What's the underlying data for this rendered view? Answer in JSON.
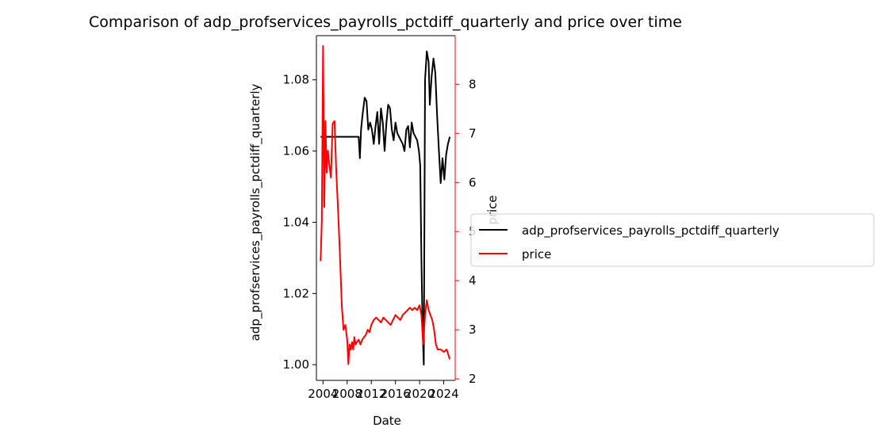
{
  "chart_data": {
    "type": "line",
    "title": "Comparison of adp_profservices_payrolls_pctdiff_quarterly and price over time",
    "xlabel": "Date",
    "ylabel_left": "adp_profservices_payrolls_pctdiff_quarterly",
    "ylabel_right": "price",
    "x_ticks": [
      "2004",
      "2008",
      "2012",
      "2016",
      "2020",
      "2024"
    ],
    "x_tick_values": [
      2004,
      2008,
      2012,
      2016,
      2020,
      2024
    ],
    "xlim": [
      2002.9,
      2025.9
    ],
    "y_left_ticks": [
      "1.00",
      "1.02",
      "1.04",
      "1.06",
      "1.08"
    ],
    "y_left_tick_values": [
      1.0,
      1.02,
      1.04,
      1.06,
      1.08
    ],
    "ylim_left": [
      0.9956,
      1.0924
    ],
    "y_right_ticks": [
      "2",
      "3",
      "4",
      "5",
      "6",
      "7",
      "8"
    ],
    "y_right_tick_values": [
      2,
      3,
      4,
      5,
      6,
      7,
      8
    ],
    "ylim_right": [
      1.97,
      8.99
    ],
    "grid": false,
    "legend_placement": "outside-right",
    "colors": {
      "left_axis": "#000000",
      "right_axis": "#ff0000"
    },
    "series": [
      {
        "name": "adp_profservices_payrolls_pctdiff_quarterly",
        "axis": "left",
        "color": "#000000",
        "x": [
          2003.6,
          2005.0,
          2007.0,
          2009.0,
          2009.9,
          2010.1,
          2010.3,
          2010.6,
          2010.9,
          2011.2,
          2011.5,
          2011.8,
          2012.1,
          2012.4,
          2012.7,
          2013.0,
          2013.3,
          2013.6,
          2013.9,
          2014.2,
          2014.5,
          2014.8,
          2015.1,
          2015.4,
          2015.7,
          2016.0,
          2016.3,
          2016.6,
          2016.9,
          2017.2,
          2017.5,
          2017.8,
          2018.1,
          2018.4,
          2018.7,
          2019.0,
          2019.3,
          2019.6,
          2019.9,
          2020.1,
          2020.3,
          2020.5,
          2020.7,
          2020.9,
          2021.2,
          2021.5,
          2021.7,
          2022.0,
          2022.3,
          2022.6,
          2022.9,
          2023.2,
          2023.5,
          2023.8,
          2024.1,
          2024.4,
          2024.7,
          2025.0
        ],
        "y": [
          1.064,
          1.064,
          1.064,
          1.064,
          1.064,
          1.058,
          1.066,
          1.071,
          1.075,
          1.074,
          1.066,
          1.068,
          1.066,
          1.062,
          1.067,
          1.071,
          1.062,
          1.072,
          1.068,
          1.06,
          1.068,
          1.073,
          1.072,
          1.066,
          1.063,
          1.068,
          1.065,
          1.064,
          1.063,
          1.062,
          1.06,
          1.066,
          1.067,
          1.061,
          1.068,
          1.065,
          1.064,
          1.063,
          1.06,
          1.056,
          1.03,
          1.01,
          1.0,
          1.08,
          1.088,
          1.085,
          1.073,
          1.081,
          1.086,
          1.082,
          1.07,
          1.06,
          1.051,
          1.058,
          1.052,
          1.059,
          1.062,
          1.064
        ]
      },
      {
        "name": "price",
        "axis": "right",
        "color": "#ff0000",
        "x": [
          2003.6,
          2003.8,
          2004.0,
          2004.2,
          2004.4,
          2004.6,
          2004.8,
          2005.0,
          2005.3,
          2005.6,
          2005.9,
          2006.2,
          2006.5,
          2006.8,
          2007.1,
          2007.4,
          2007.7,
          2008.0,
          2008.2,
          2008.4,
          2008.6,
          2008.8,
          2009.0,
          2009.2,
          2009.4,
          2009.6,
          2009.9,
          2010.2,
          2010.5,
          2010.8,
          2011.1,
          2011.4,
          2011.7,
          2012.0,
          2012.4,
          2012.8,
          2013.2,
          2013.6,
          2014.0,
          2014.4,
          2014.8,
          2015.2,
          2015.6,
          2016.0,
          2016.4,
          2016.8,
          2017.2,
          2017.6,
          2018.0,
          2018.4,
          2018.8,
          2019.2,
          2019.6,
          2020.0,
          2020.3,
          2020.6,
          2020.9,
          2021.2,
          2021.5,
          2021.8,
          2022.1,
          2022.4,
          2022.7,
          2023.0,
          2023.5,
          2024.0,
          2024.5,
          2025.0
        ],
        "y": [
          4.4,
          5.2,
          8.78,
          5.5,
          7.25,
          6.2,
          6.65,
          6.4,
          6.1,
          7.2,
          7.25,
          6.2,
          5.4,
          4.5,
          3.5,
          3.0,
          3.1,
          2.8,
          2.3,
          2.7,
          2.6,
          2.75,
          2.6,
          2.85,
          2.7,
          2.75,
          2.8,
          2.7,
          2.8,
          2.85,
          2.9,
          3.0,
          2.95,
          3.1,
          3.2,
          3.25,
          3.2,
          3.15,
          3.25,
          3.2,
          3.15,
          3.1,
          3.2,
          3.3,
          3.25,
          3.2,
          3.3,
          3.35,
          3.4,
          3.45,
          3.4,
          3.45,
          3.4,
          3.5,
          3.3,
          2.7,
          3.3,
          3.6,
          3.4,
          3.3,
          3.2,
          3.0,
          2.7,
          2.6,
          2.6,
          2.55,
          2.6,
          2.4
        ]
      }
    ]
  }
}
